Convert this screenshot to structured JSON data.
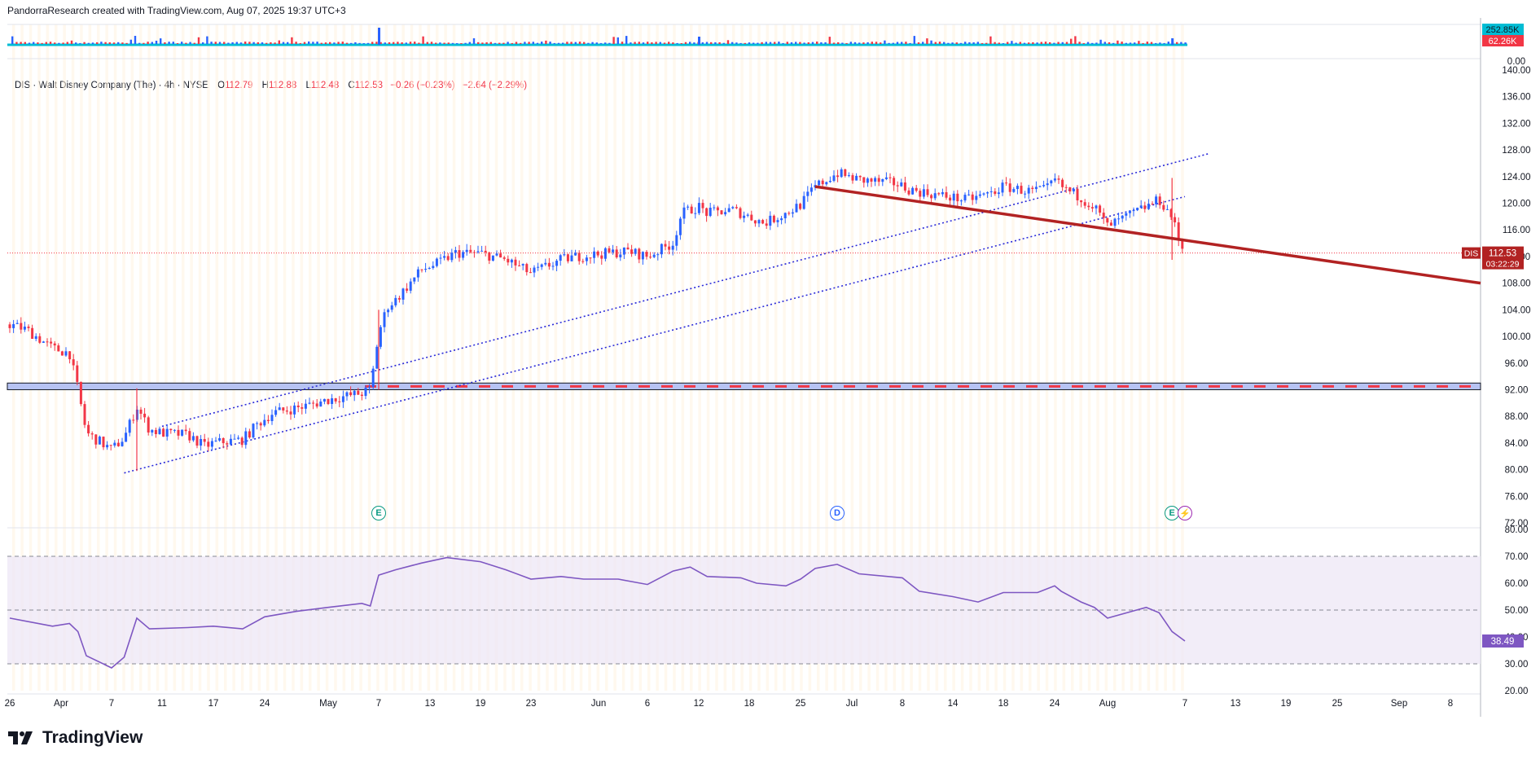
{
  "header": {
    "attribution": "PandorraResearch created with TradingView.com, Aug 07, 2025 19:37 UTC+3"
  },
  "legend": {
    "symbol": "DIS · Walt Disney Company (The) · 4h · NYSE",
    "o_label": "O",
    "o": "112.79",
    "h_label": "H",
    "h": "112.88",
    "l_label": "L",
    "l": "112.48",
    "c_label": "C",
    "c": "112.53",
    "change": "−0.26 (−0.23%)",
    "change2": "−2.64 (−2.29%)"
  },
  "price_badge": {
    "ticker": "DIS",
    "price": "112.53",
    "countdown": "03:22:29"
  },
  "volume_badges": {
    "v1": "252.85K",
    "v2": "62.26K",
    "zero": "0.00"
  },
  "rsi_badge": "38.49",
  "events": [
    {
      "letter": "E",
      "date": "May 7",
      "color": "#089981"
    },
    {
      "letter": "D",
      "date": "Jun 30",
      "color": "#2962ff"
    },
    {
      "letter": "E",
      "date": "Aug 6",
      "color": "#089981"
    },
    {
      "letter": "⚡",
      "date": "Aug 7",
      "color": "#9c27b0"
    }
  ],
  "colors": {
    "up": "#2962ff",
    "down": "#f23645",
    "trend": "#b22222",
    "channel": "#2b2bd8",
    "rsi": "#7e57c2",
    "volume": "#00bcd4"
  },
  "brand": {
    "name": "TradingView"
  },
  "chart_data": [
    {
      "type": "candlestick",
      "title": "DIS · Walt Disney Company (The) · 4h · NYSE",
      "ylim": [
        72,
        140
      ],
      "yticks": [
        "140.00",
        "136.00",
        "132.00",
        "128.00",
        "124.00",
        "120.00",
        "116.00",
        "112.00",
        "108.00",
        "104.00",
        "100.00",
        "96.00",
        "92.00",
        "88.00",
        "84.00",
        "80.00",
        "76.00",
        "72.00"
      ],
      "xticks": [
        "26",
        "Apr",
        "7",
        "11",
        "17",
        "24",
        "May",
        "7",
        "13",
        "19",
        "23",
        "Jun",
        "6",
        "12",
        "18",
        "25",
        "Jul",
        "8",
        "14",
        "18",
        "24",
        "Aug",
        "7",
        "13",
        "19",
        "25",
        "Sep",
        "8"
      ],
      "close_path": [
        [
          "Mar 26",
          101.8
        ],
        [
          "Mar 28",
          101.0
        ],
        [
          "Mar 31",
          98.2
        ],
        [
          "Apr 2",
          97.5
        ],
        [
          "Apr 3",
          92.0
        ],
        [
          "Apr 4",
          85.5
        ],
        [
          "Apr 7",
          83.0
        ],
        [
          "Apr 8",
          84.8
        ],
        [
          "Apr 9",
          89.5
        ],
        [
          "Apr 10",
          86.0
        ],
        [
          "Apr 11",
          85.5
        ],
        [
          "Apr 14",
          85.2
        ],
        [
          "Apr 16",
          83.5
        ],
        [
          "Apr 17",
          84.0
        ],
        [
          "Apr 21",
          84.5
        ],
        [
          "Apr 23",
          86.8
        ],
        [
          "Apr 25",
          88.5
        ],
        [
          "Apr 29",
          89.5
        ],
        [
          "May 1",
          90.5
        ],
        [
          "May 5",
          91.5
        ],
        [
          "May 6",
          92.0
        ],
        [
          "May 7",
          100.5
        ],
        [
          "May 8",
          104.5
        ],
        [
          "May 9",
          105.5
        ],
        [
          "May 12",
          110.0
        ],
        [
          "May 14",
          111.0
        ],
        [
          "May 16",
          112.5
        ],
        [
          "May 19",
          112.5
        ],
        [
          "May 21",
          111.5
        ],
        [
          "May 23",
          109.5
        ],
        [
          "May 27",
          111.5
        ],
        [
          "May 29",
          112.0
        ],
        [
          "Jun 2",
          112.5
        ],
        [
          "Jun 4",
          112.8
        ],
        [
          "Jun 6",
          112.0
        ],
        [
          "Jun 9",
          114.0
        ],
        [
          "Jun 10",
          118.5
        ],
        [
          "Jun 12",
          119.5
        ],
        [
          "Jun 13",
          118.5
        ],
        [
          "Jun 16",
          119.0
        ],
        [
          "Jun 18",
          118.0
        ],
        [
          "Jun 20",
          117.0
        ],
        [
          "Jun 23",
          118.5
        ],
        [
          "Jun 25",
          119.8
        ],
        [
          "Jun 27",
          122.5
        ],
        [
          "Jun 30",
          124.5
        ],
        [
          "Jul 2",
          123.5
        ],
        [
          "Jul 7",
          123.0
        ],
        [
          "Jul 9",
          122.0
        ],
        [
          "Jul 11",
          121.5
        ],
        [
          "Jul 15",
          120.5
        ],
        [
          "Jul 17",
          121.5
        ],
        [
          "Jul 18",
          122.5
        ],
        [
          "Jul 21",
          121.8
        ],
        [
          "Jul 23",
          122.0
        ],
        [
          "Jul 24",
          123.5
        ],
        [
          "Jul 25",
          122.5
        ],
        [
          "Jul 28",
          120.8
        ],
        [
          "Jul 30",
          119.5
        ],
        [
          "Aug 1",
          116.5
        ],
        [
          "Aug 4",
          119.5
        ],
        [
          "Aug 5",
          120.5
        ],
        [
          "Aug 6",
          118.0
        ],
        [
          "Aug 6b",
          114.5
        ],
        [
          "Aug 7",
          112.53
        ]
      ],
      "support_zone": [
        92,
        93
      ],
      "trendline": {
        "from": [
          "Jun 27",
          122.5
        ],
        "to": [
          "Sep 12",
          108.0
        ]
      },
      "channel": {
        "lower": [
          [
            "Apr 8",
            79.5
          ],
          [
            "Aug 7",
            121.0
          ]
        ],
        "upper": [
          [
            "Apr 11",
            86.5
          ],
          [
            "Aug 10",
            127.5
          ]
        ]
      },
      "last_price": 112.53
    },
    {
      "type": "line",
      "title": "RSI",
      "ylim": [
        20,
        80
      ],
      "yticks": [
        "80.00",
        "70.00",
        "60.00",
        "50.00",
        "40.00",
        "30.00",
        "20.00"
      ],
      "bands": [
        30,
        50,
        70
      ],
      "points": [
        [
          "Mar 26",
          47
        ],
        [
          "Mar 31",
          44
        ],
        [
          "Apr 2",
          45
        ],
        [
          "Apr 3",
          42
        ],
        [
          "Apr 4",
          33
        ],
        [
          "Apr 7",
          28.5
        ],
        [
          "Apr 8",
          32.5
        ],
        [
          "Apr 9",
          47
        ],
        [
          "Apr 10",
          43
        ],
        [
          "Apr 14",
          43.5
        ],
        [
          "Apr 17",
          44
        ],
        [
          "Apr 21",
          43
        ],
        [
          "Apr 24",
          47.5
        ],
        [
          "Apr 28",
          49.5
        ],
        [
          "May 1",
          51
        ],
        [
          "May 5",
          52.5
        ],
        [
          "May 6",
          51.5
        ],
        [
          "May 7",
          63
        ],
        [
          "May 9",
          65
        ],
        [
          "May 12",
          67.5
        ],
        [
          "May 15",
          69.5
        ],
        [
          "May 19",
          68
        ],
        [
          "May 21",
          65
        ],
        [
          "May 23",
          61.5
        ],
        [
          "May 27",
          62.5
        ],
        [
          "May 30",
          61.5
        ],
        [
          "Jun 3",
          61.5
        ],
        [
          "Jun 6",
          59.5
        ],
        [
          "Jun 9",
          64.5
        ],
        [
          "Jun 11",
          66
        ],
        [
          "Jun 13",
          62.5
        ],
        [
          "Jun 17",
          62
        ],
        [
          "Jun 19",
          60
        ],
        [
          "Jun 23",
          59
        ],
        [
          "Jun 25",
          61.5
        ],
        [
          "Jun 27",
          65.5
        ],
        [
          "Jun 30",
          67
        ],
        [
          "Jul 2",
          63.5
        ],
        [
          "Jul 8",
          62
        ],
        [
          "Jul 10",
          57
        ],
        [
          "Jul 14",
          55
        ],
        [
          "Jul 16",
          53
        ],
        [
          "Jul 18",
          56.5
        ],
        [
          "Jul 22",
          56.5
        ],
        [
          "Jul 24",
          59
        ],
        [
          "Jul 25",
          57
        ],
        [
          "Jul 28",
          53
        ],
        [
          "Jul 30",
          51
        ],
        [
          "Aug 1",
          47
        ],
        [
          "Aug 4",
          51
        ],
        [
          "Aug 5",
          49
        ],
        [
          "Aug 6",
          42
        ],
        [
          "Aug 7",
          38.49
        ]
      ]
    },
    {
      "type": "bar",
      "title": "Volume",
      "labels": [
        "252.85K",
        "62.26K",
        "0.00"
      ]
    }
  ]
}
